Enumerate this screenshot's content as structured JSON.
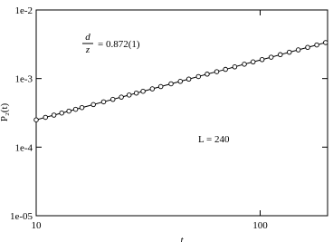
{
  "chart_data": {
    "type": "line",
    "log_x": true,
    "log_y": true,
    "xlabel": "t",
    "ylabel": "P₂(t)",
    "annotations": [
      "d",
      "z",
      "= 0.872(1)",
      "L = 240"
    ],
    "xlim": [
      10,
      200
    ],
    "ylim": [
      1e-05,
      0.01
    ],
    "xticks": [
      10,
      100
    ],
    "yticks": [
      {
        "value": 1e-05,
        "label": "1e-05"
      },
      {
        "value": 0.0001,
        "label": "1e-4"
      },
      {
        "value": 0.001,
        "label": "1e-3"
      },
      {
        "value": 0.01,
        "label": "1e-2"
      }
    ],
    "color": "#000000",
    "x": [
      10,
      11,
      12,
      13,
      14,
      15,
      16,
      18,
      20,
      22,
      24,
      26,
      28,
      30,
      33,
      36,
      40,
      44,
      48,
      53,
      58,
      64,
      70,
      77,
      85,
      93,
      102,
      112,
      123,
      135,
      148,
      163,
      179,
      196
    ],
    "values": [
      0.00025,
      0.000272,
      0.000293,
      0.000314,
      0.000335,
      0.000356,
      0.000377,
      0.000417,
      0.000458,
      0.000497,
      0.000536,
      0.000575,
      0.000614,
      0.000652,
      0.000708,
      0.000764,
      0.000838,
      0.00091,
      0.000982,
      0.00107,
      0.00116,
      0.00126,
      0.00136,
      0.00148,
      0.00162,
      0.00175,
      0.00189,
      0.00205,
      0.00223,
      0.00242,
      0.00262,
      0.00285,
      0.00309,
      0.00335
    ]
  }
}
